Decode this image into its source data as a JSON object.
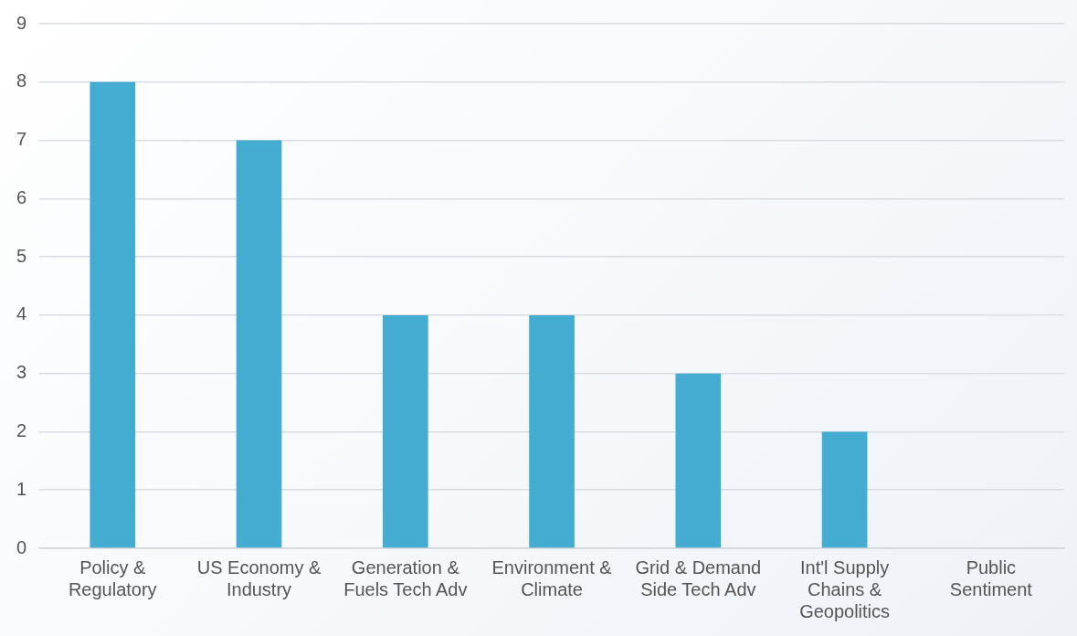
{
  "chart_data": {
    "type": "bar",
    "categories": [
      "Policy & Regulatory",
      "US Economy & Industry",
      "Generation & Fuels Tech Adv",
      "Environment & Climate",
      "Grid & Demand Side Tech Adv",
      "Int'l Supply Chains & Geopolitics",
      "Public Sentiment"
    ],
    "values": [
      8,
      7,
      4,
      4,
      3,
      2,
      0
    ],
    "color": "#45acd1",
    "ylim": [
      0,
      9
    ],
    "yticks": [
      0,
      1,
      2,
      3,
      4,
      5,
      6,
      7,
      8,
      9
    ],
    "grid": "y"
  }
}
